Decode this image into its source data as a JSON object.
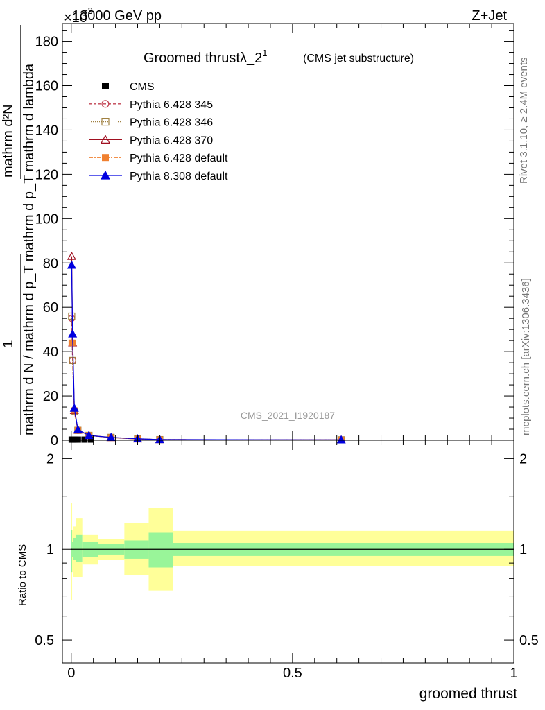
{
  "header": {
    "left_label": "13000 GeV pp",
    "exponent_label": "×10",
    "exponent_power": "−3",
    "right_label": "Z+Jet"
  },
  "side_labels": {
    "rivet": "Rivet 3.1.10, ≥ 2.4M events",
    "mcplots": "mcplots.cern.ch [arXiv:1306.3436]"
  },
  "watermark": "CMS_2021_I1920187",
  "colors": {
    "cms": "#000000",
    "p345": "#c04050",
    "p346": "#a08040",
    "p370": "#a01020",
    "pdefault": "#f08030",
    "p8": "#0000e0",
    "band_inner": "#99f599",
    "band_outer": "#ffff99"
  },
  "chart_data": [
    {
      "type": "line",
      "title": "Groomed thrust",
      "title_symbol": "λ_2",
      "title_superscript": "1",
      "title_note": "(CMS jet substructure)",
      "ylabel_num": "1",
      "ylabel_den": "mathrm d N / mathrm d p_T mathrm d p_T mathrm d lambda",
      "ylabel_num_right": "mathrm d²N",
      "ylim": [
        0,
        188
      ],
      "xlim": [
        -0.02,
        1.0
      ],
      "y_ticks": [
        "0",
        "20",
        "40",
        "60",
        "80",
        "100",
        "120",
        "140",
        "160",
        "180"
      ],
      "legend_position": "top-left",
      "series": [
        {
          "name": "CMS",
          "key": "cms",
          "marker": "square",
          "x": [
            0.001,
            0.003,
            0.007,
            0.015,
            0.03,
            0.045
          ],
          "values": [
            0.3,
            0.3,
            0.3,
            0.3,
            0.3,
            0.3
          ]
        },
        {
          "name": "Pythia 6.428 345",
          "key": "p345",
          "marker": "circle-open",
          "dash": "4,3",
          "x": [
            0.001,
            0.003,
            0.007,
            0.015,
            0.04,
            0.09,
            0.15,
            0.2,
            0.61
          ],
          "values": [
            55,
            36,
            13,
            4.5,
            2.2,
            1.3,
            0.7,
            0.3,
            0.2
          ]
        },
        {
          "name": "Pythia 6.428 346",
          "key": "p346",
          "marker": "square-open",
          "dash": "1,2",
          "x": [
            0.001,
            0.003,
            0.007,
            0.015,
            0.04,
            0.09,
            0.15,
            0.2,
            0.61
          ],
          "values": [
            56,
            36,
            13,
            4.5,
            2.2,
            1.3,
            0.7,
            0.3,
            0.2
          ]
        },
        {
          "name": "Pythia 6.428 370",
          "key": "p370",
          "marker": "triangle-open",
          "dash": "",
          "x": [
            0.001,
            0.003,
            0.007,
            0.015,
            0.04,
            0.09,
            0.15,
            0.2,
            0.61
          ],
          "values": [
            83,
            44,
            13.5,
            4.6,
            2.2,
            1.2,
            0.6,
            0.3,
            0.2
          ]
        },
        {
          "name": "Pythia 6.428 default",
          "key": "pdefault",
          "marker": "square-filled",
          "dash": "6,2,2,2",
          "x": [
            0.001,
            0.003,
            0.007,
            0.015,
            0.04,
            0.09,
            0.15,
            0.2,
            0.61
          ],
          "values": [
            44,
            44,
            13.5,
            4.6,
            2.2,
            1.2,
            0.6,
            0.3,
            0.2
          ]
        },
        {
          "name": "Pythia 8.308 default",
          "key": "p8",
          "marker": "triangle-filled",
          "dash": "",
          "x": [
            0.001,
            0.003,
            0.007,
            0.015,
            0.04,
            0.09,
            0.15,
            0.2,
            0.61
          ],
          "values": [
            79,
            48,
            14.5,
            4.8,
            2.2,
            1.3,
            0.7,
            0.3,
            0.2
          ]
        }
      ]
    },
    {
      "type": "area",
      "ylabel": "Ratio to CMS",
      "xlabel": "groomed thrust",
      "ylim": [
        0.42,
        2.3
      ],
      "y_scale": "log",
      "xlim": [
        -0.02,
        1.0
      ],
      "y_ticks": [
        "0.5",
        "1",
        "2"
      ],
      "x_ticks": [
        "0",
        "0.5",
        "1"
      ],
      "reference_line": 1,
      "bins": [
        {
          "lo": 0.0,
          "hi": 0.002,
          "inner": [
            0.84,
            1.16
          ],
          "outer": [
            0.68,
            1.42
          ]
        },
        {
          "lo": 0.002,
          "hi": 0.005,
          "inner": [
            0.94,
            1.06
          ],
          "outer": [
            0.84,
            1.16
          ]
        },
        {
          "lo": 0.005,
          "hi": 0.01,
          "inner": [
            0.92,
            1.09
          ],
          "outer": [
            0.81,
            1.19
          ]
        },
        {
          "lo": 0.01,
          "hi": 0.025,
          "inner": [
            0.91,
            1.12
          ],
          "outer": [
            0.81,
            1.27
          ]
        },
        {
          "lo": 0.025,
          "hi": 0.06,
          "inner": [
            0.94,
            1.06
          ],
          "outer": [
            0.89,
            1.12
          ]
        },
        {
          "lo": 0.06,
          "hi": 0.12,
          "inner": [
            0.96,
            1.04
          ],
          "outer": [
            0.92,
            1.08
          ]
        },
        {
          "lo": 0.12,
          "hi": 0.175,
          "inner": [
            0.93,
            1.07
          ],
          "outer": [
            0.82,
            1.22
          ]
        },
        {
          "lo": 0.175,
          "hi": 0.23,
          "inner": [
            0.87,
            1.14
          ],
          "outer": [
            0.73,
            1.37
          ]
        },
        {
          "lo": 0.23,
          "hi": 1.0,
          "inner": [
            0.95,
            1.05
          ],
          "outer": [
            0.88,
            1.15
          ]
        }
      ]
    }
  ]
}
